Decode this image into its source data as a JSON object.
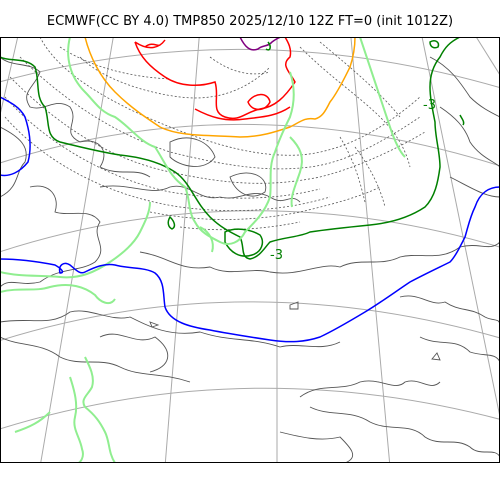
{
  "figure": {
    "title": "ECMWF(CC BY 4.0) TMP850 2025/12/10 12Z FT=0 (init 1012Z)"
  },
  "contour_labels": [
    {
      "text": "-3",
      "color": "#008000"
    },
    {
      "text": "-3",
      "color": "#008000"
    }
  ],
  "isotherm_colors": {
    "blue": "#0000ff",
    "green": "#008000",
    "lightgreen": "#90ee90",
    "orange": "#ffa500",
    "red": "#ff0000",
    "purple": "#800080",
    "coastline": "#555555",
    "gridlines": "#aaaaaa",
    "dotted_isotherms": "#555555"
  },
  "legend": "none"
}
